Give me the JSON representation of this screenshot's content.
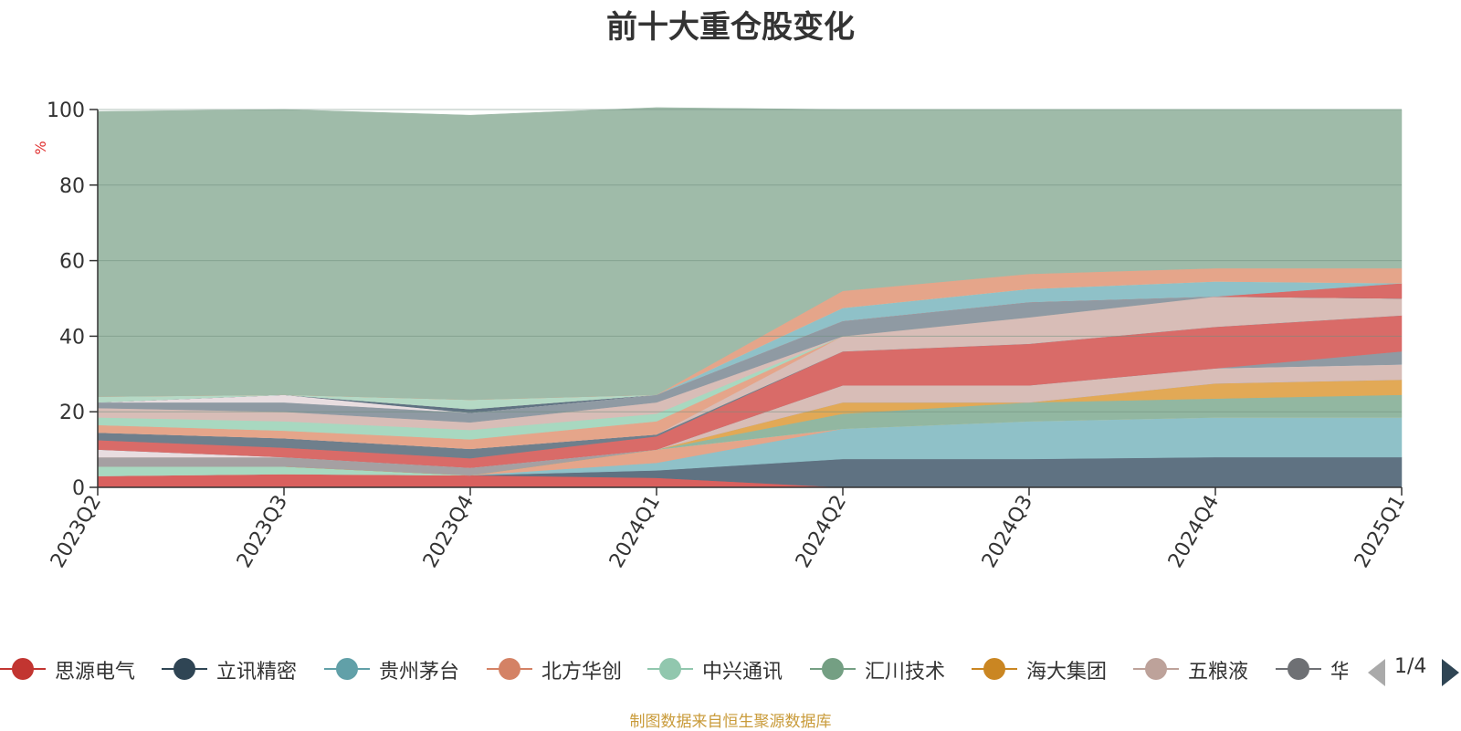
{
  "title": "前十大重仓股变化",
  "source_note": "制图数据来自恒生聚源数据库",
  "legend_page": "1/4",
  "chart_data": {
    "type": "area",
    "stacked": true,
    "title": "前十大重仓股变化",
    "ylabel": "%",
    "ylim": [
      0,
      100
    ],
    "yticks": [
      0,
      20,
      40,
      60,
      80,
      100
    ],
    "grid": true,
    "legend_position": "bottom",
    "categories": [
      "2023Q2",
      "2023Q3",
      "2023Q4",
      "2024Q1",
      "2024Q2",
      "2024Q3",
      "2024Q4",
      "2025Q1"
    ],
    "series": [
      {
        "name": "",
        "color": "#d9605e",
        "values": [
          3,
          3.5,
          3.2,
          2.5,
          0,
          0,
          0,
          0
        ]
      },
      {
        "name": "",
        "color": "#5f7282",
        "values": [
          0,
          0,
          0,
          2,
          7.5,
          7.5,
          8,
          8
        ]
      },
      {
        "name": "",
        "color": "#8fc1c8",
        "values": [
          0,
          0,
          0,
          2,
          8,
          10,
          10.5,
          10.5
        ]
      },
      {
        "name": "",
        "color": "#e5a58a",
        "values": [
          0,
          0,
          0,
          3.5,
          0,
          0,
          0,
          0
        ]
      },
      {
        "name": "",
        "color": "#a8d8c0",
        "values": [
          2.5,
          2,
          0,
          0,
          0,
          0,
          0,
          0
        ]
      },
      {
        "name": "",
        "color": "#92b7a1",
        "values": [
          0,
          0,
          0,
          0,
          4,
          5,
          5,
          6
        ]
      },
      {
        "name": "",
        "color": "#e2a956",
        "values": [
          0,
          0,
          0,
          0,
          3,
          0,
          4,
          4
        ]
      },
      {
        "name": "",
        "color": "#a5a0a2",
        "values": [
          2.5,
          2.5,
          2,
          0,
          0,
          0,
          0,
          0
        ]
      },
      {
        "name": "",
        "color": "#d8bdb7",
        "values": [
          0,
          0,
          0,
          0,
          4.5,
          4.5,
          4,
          4
        ]
      },
      {
        "name": "",
        "color": "#e8dde0",
        "values": [
          2,
          0,
          0,
          0,
          0,
          0,
          0,
          0
        ]
      },
      {
        "name": "",
        "color": "#8f9aa3",
        "values": [
          0,
          0,
          0,
          0,
          0,
          0,
          0,
          3.5
        ]
      },
      {
        "name": "",
        "color": "#d96b68",
        "values": [
          2.5,
          2.5,
          2.5,
          3.5,
          9,
          11,
          11,
          9.5
        ]
      },
      {
        "name": "",
        "color": "#6f7f8c",
        "values": [
          2,
          2.5,
          2.5,
          0.5,
          0,
          0,
          0,
          0
        ]
      },
      {
        "name": "",
        "color": "#d8bdb7",
        "values": [
          0,
          0,
          0,
          0,
          4,
          7,
          8,
          4.5
        ]
      },
      {
        "name": "",
        "color": "#e5a58a",
        "values": [
          2,
          2,
          2.5,
          3.5,
          0,
          0,
          0,
          0
        ]
      },
      {
        "name": "",
        "color": "#a8d8c0",
        "values": [
          2,
          2.5,
          2.5,
          2,
          0,
          0,
          0,
          0
        ]
      },
      {
        "name": "",
        "color": "#d8bdb7",
        "values": [
          2.5,
          2.5,
          2,
          3,
          0,
          0,
          0,
          0
        ]
      },
      {
        "name": "",
        "color": "#8f9aa3",
        "values": [
          1.5,
          2.5,
          2.5,
          2,
          4,
          4,
          0,
          0
        ]
      },
      {
        "name": "",
        "color": "#e8dde0",
        "values": [
          0,
          2,
          0,
          0,
          0,
          0,
          0,
          0
        ]
      },
      {
        "name": "",
        "color": "#5f7282",
        "values": [
          0,
          0,
          1,
          0,
          0,
          0,
          0,
          0
        ]
      },
      {
        "name": "",
        "color": "#d96b68",
        "values": [
          0,
          0,
          0,
          0,
          0,
          0,
          0,
          4
        ]
      },
      {
        "name": "",
        "color": "#8fc1c8",
        "values": [
          0,
          0,
          0,
          0,
          3.5,
          3.5,
          4,
          0
        ]
      },
      {
        "name": "",
        "color": "#b5d9c5",
        "values": [
          1.5,
          0,
          2.5,
          0,
          0,
          0,
          0,
          0
        ]
      },
      {
        "name": "",
        "color": "#e5a58a",
        "values": [
          0,
          0,
          0,
          0,
          4.5,
          4,
          3.5,
          4
        ]
      },
      {
        "name": "",
        "color": "#9fbba9",
        "values": [
          75.5,
          75.5,
          75.3,
          76,
          48,
          43.5,
          42,
          42
        ]
      }
    ]
  },
  "legend": [
    {
      "name": "思源电气",
      "color": "#c23531"
    },
    {
      "name": "立讯精密",
      "color": "#2f4554"
    },
    {
      "name": "贵州茅台",
      "color": "#61a0a8"
    },
    {
      "name": "北方华创",
      "color": "#d48265"
    },
    {
      "name": "中兴通讯",
      "color": "#91c7ae"
    },
    {
      "name": "汇川技术",
      "color": "#749f83"
    },
    {
      "name": "海大集团",
      "color": "#ca8622"
    },
    {
      "name": "五粮液",
      "color": "#bda29a"
    },
    {
      "name": "华",
      "color": "#6e7074"
    }
  ]
}
